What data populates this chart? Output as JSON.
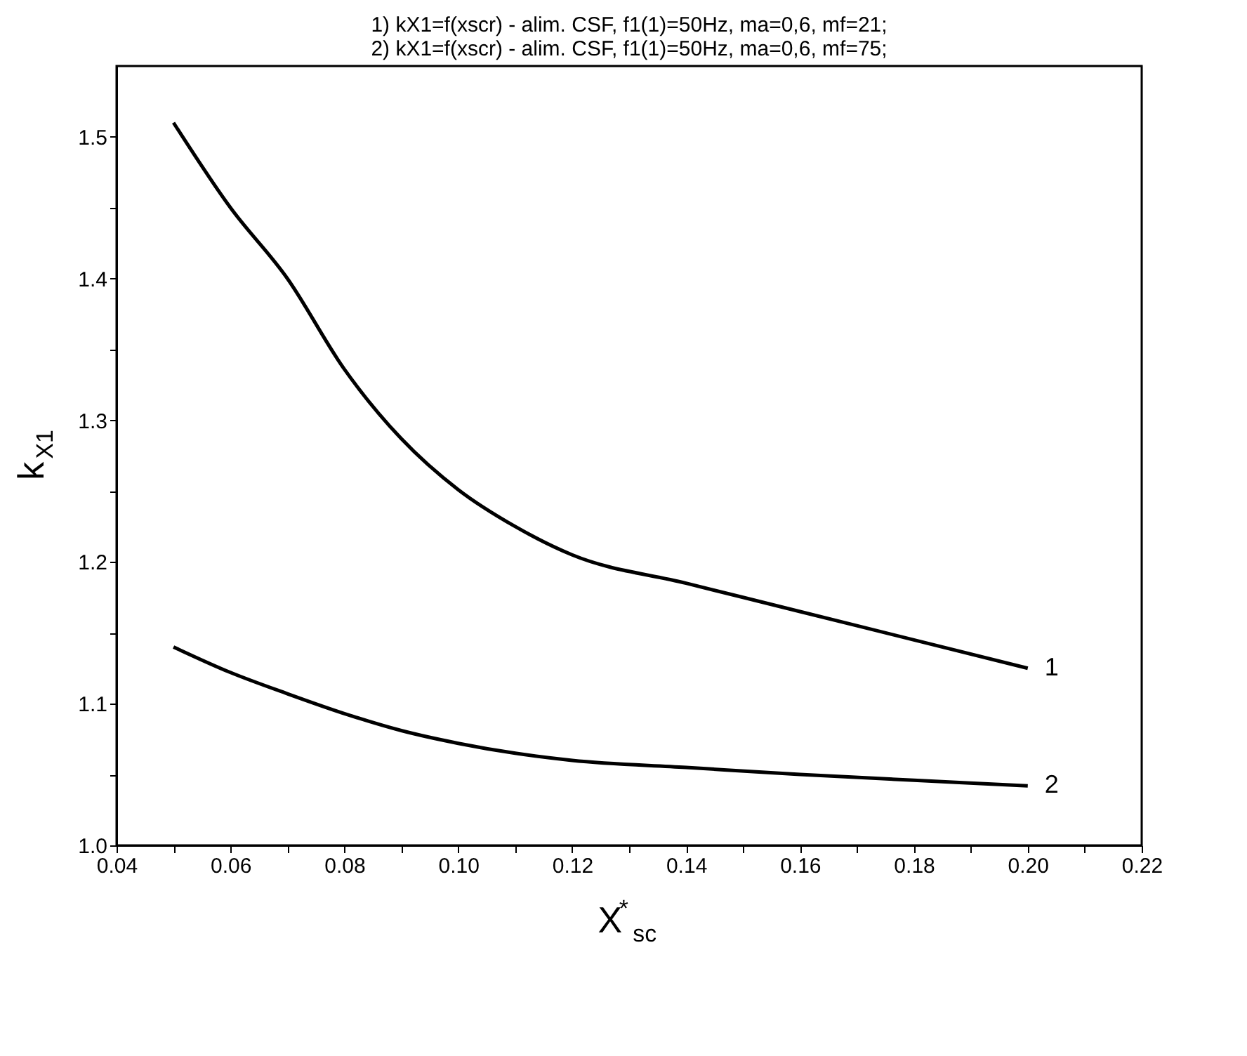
{
  "chart_data": {
    "type": "line",
    "title": [
      "1) kX1=f(xscr) - alim. CSF, f1(1)=50Hz, ma=0,6, mf=21;",
      "2) kX1=f(xscr) - alim. CSF, f1(1)=50Hz, ma=0,6, mf=75;"
    ],
    "xlabel": "X$^{*}$$_{sc}$",
    "ylabel": "k$_{X1}$",
    "x": [
      0.05,
      0.06,
      0.07,
      0.08,
      0.09,
      0.1,
      0.11,
      0.12,
      0.14,
      0.16,
      0.18,
      0.2
    ],
    "series": [
      {
        "name": "1",
        "color": "#000000",
        "values": [
          1.51,
          1.45,
          1.4,
          1.336,
          1.287,
          1.251,
          1.225,
          1.205,
          1.185,
          1.165,
          1.145,
          1.125
        ]
      },
      {
        "name": "2",
        "color": "#000000",
        "values": [
          1.14,
          1.122,
          1.107,
          1.093,
          1.081,
          1.072,
          1.065,
          1.06,
          1.055,
          1.05,
          1.046,
          1.042
        ]
      }
    ],
    "xlim": [
      0.04,
      0.22
    ],
    "ylim": [
      1.0,
      1.55
    ],
    "xticks": [
      {
        "value": 0.04,
        "label": "0.04"
      },
      {
        "value": 0.05,
        "label": null
      },
      {
        "value": 0.06,
        "label": "0.06"
      },
      {
        "value": 0.07,
        "label": null
      },
      {
        "value": 0.08,
        "label": "0.08"
      },
      {
        "value": 0.09,
        "label": null
      },
      {
        "value": 0.1,
        "label": "0.10"
      },
      {
        "value": 0.11,
        "label": null
      },
      {
        "value": 0.12,
        "label": "0.12"
      },
      {
        "value": 0.13,
        "label": null
      },
      {
        "value": 0.14,
        "label": "0.14"
      },
      {
        "value": 0.15,
        "label": null
      },
      {
        "value": 0.16,
        "label": "0.16"
      },
      {
        "value": 0.17,
        "label": null
      },
      {
        "value": 0.18,
        "label": "0.18"
      },
      {
        "value": 0.19,
        "label": null
      },
      {
        "value": 0.2,
        "label": "0.20"
      },
      {
        "value": 0.21,
        "label": null
      },
      {
        "value": 0.22,
        "label": "0.22"
      }
    ],
    "yticks": [
      {
        "value": 1.0,
        "label": "1.0"
      },
      {
        "value": 1.05,
        "label": null
      },
      {
        "value": 1.1,
        "label": "1.1"
      },
      {
        "value": 1.15,
        "label": null
      },
      {
        "value": 1.2,
        "label": "1.2"
      },
      {
        "value": 1.25,
        "label": null
      },
      {
        "value": 1.3,
        "label": "1.3"
      },
      {
        "value": 1.35,
        "label": null
      },
      {
        "value": 1.4,
        "label": "1.4"
      },
      {
        "value": 1.45,
        "label": null
      },
      {
        "value": 1.5,
        "label": "1.5"
      }
    ],
    "grid": false,
    "legend": false,
    "line_style": "solid",
    "marker": "none"
  }
}
